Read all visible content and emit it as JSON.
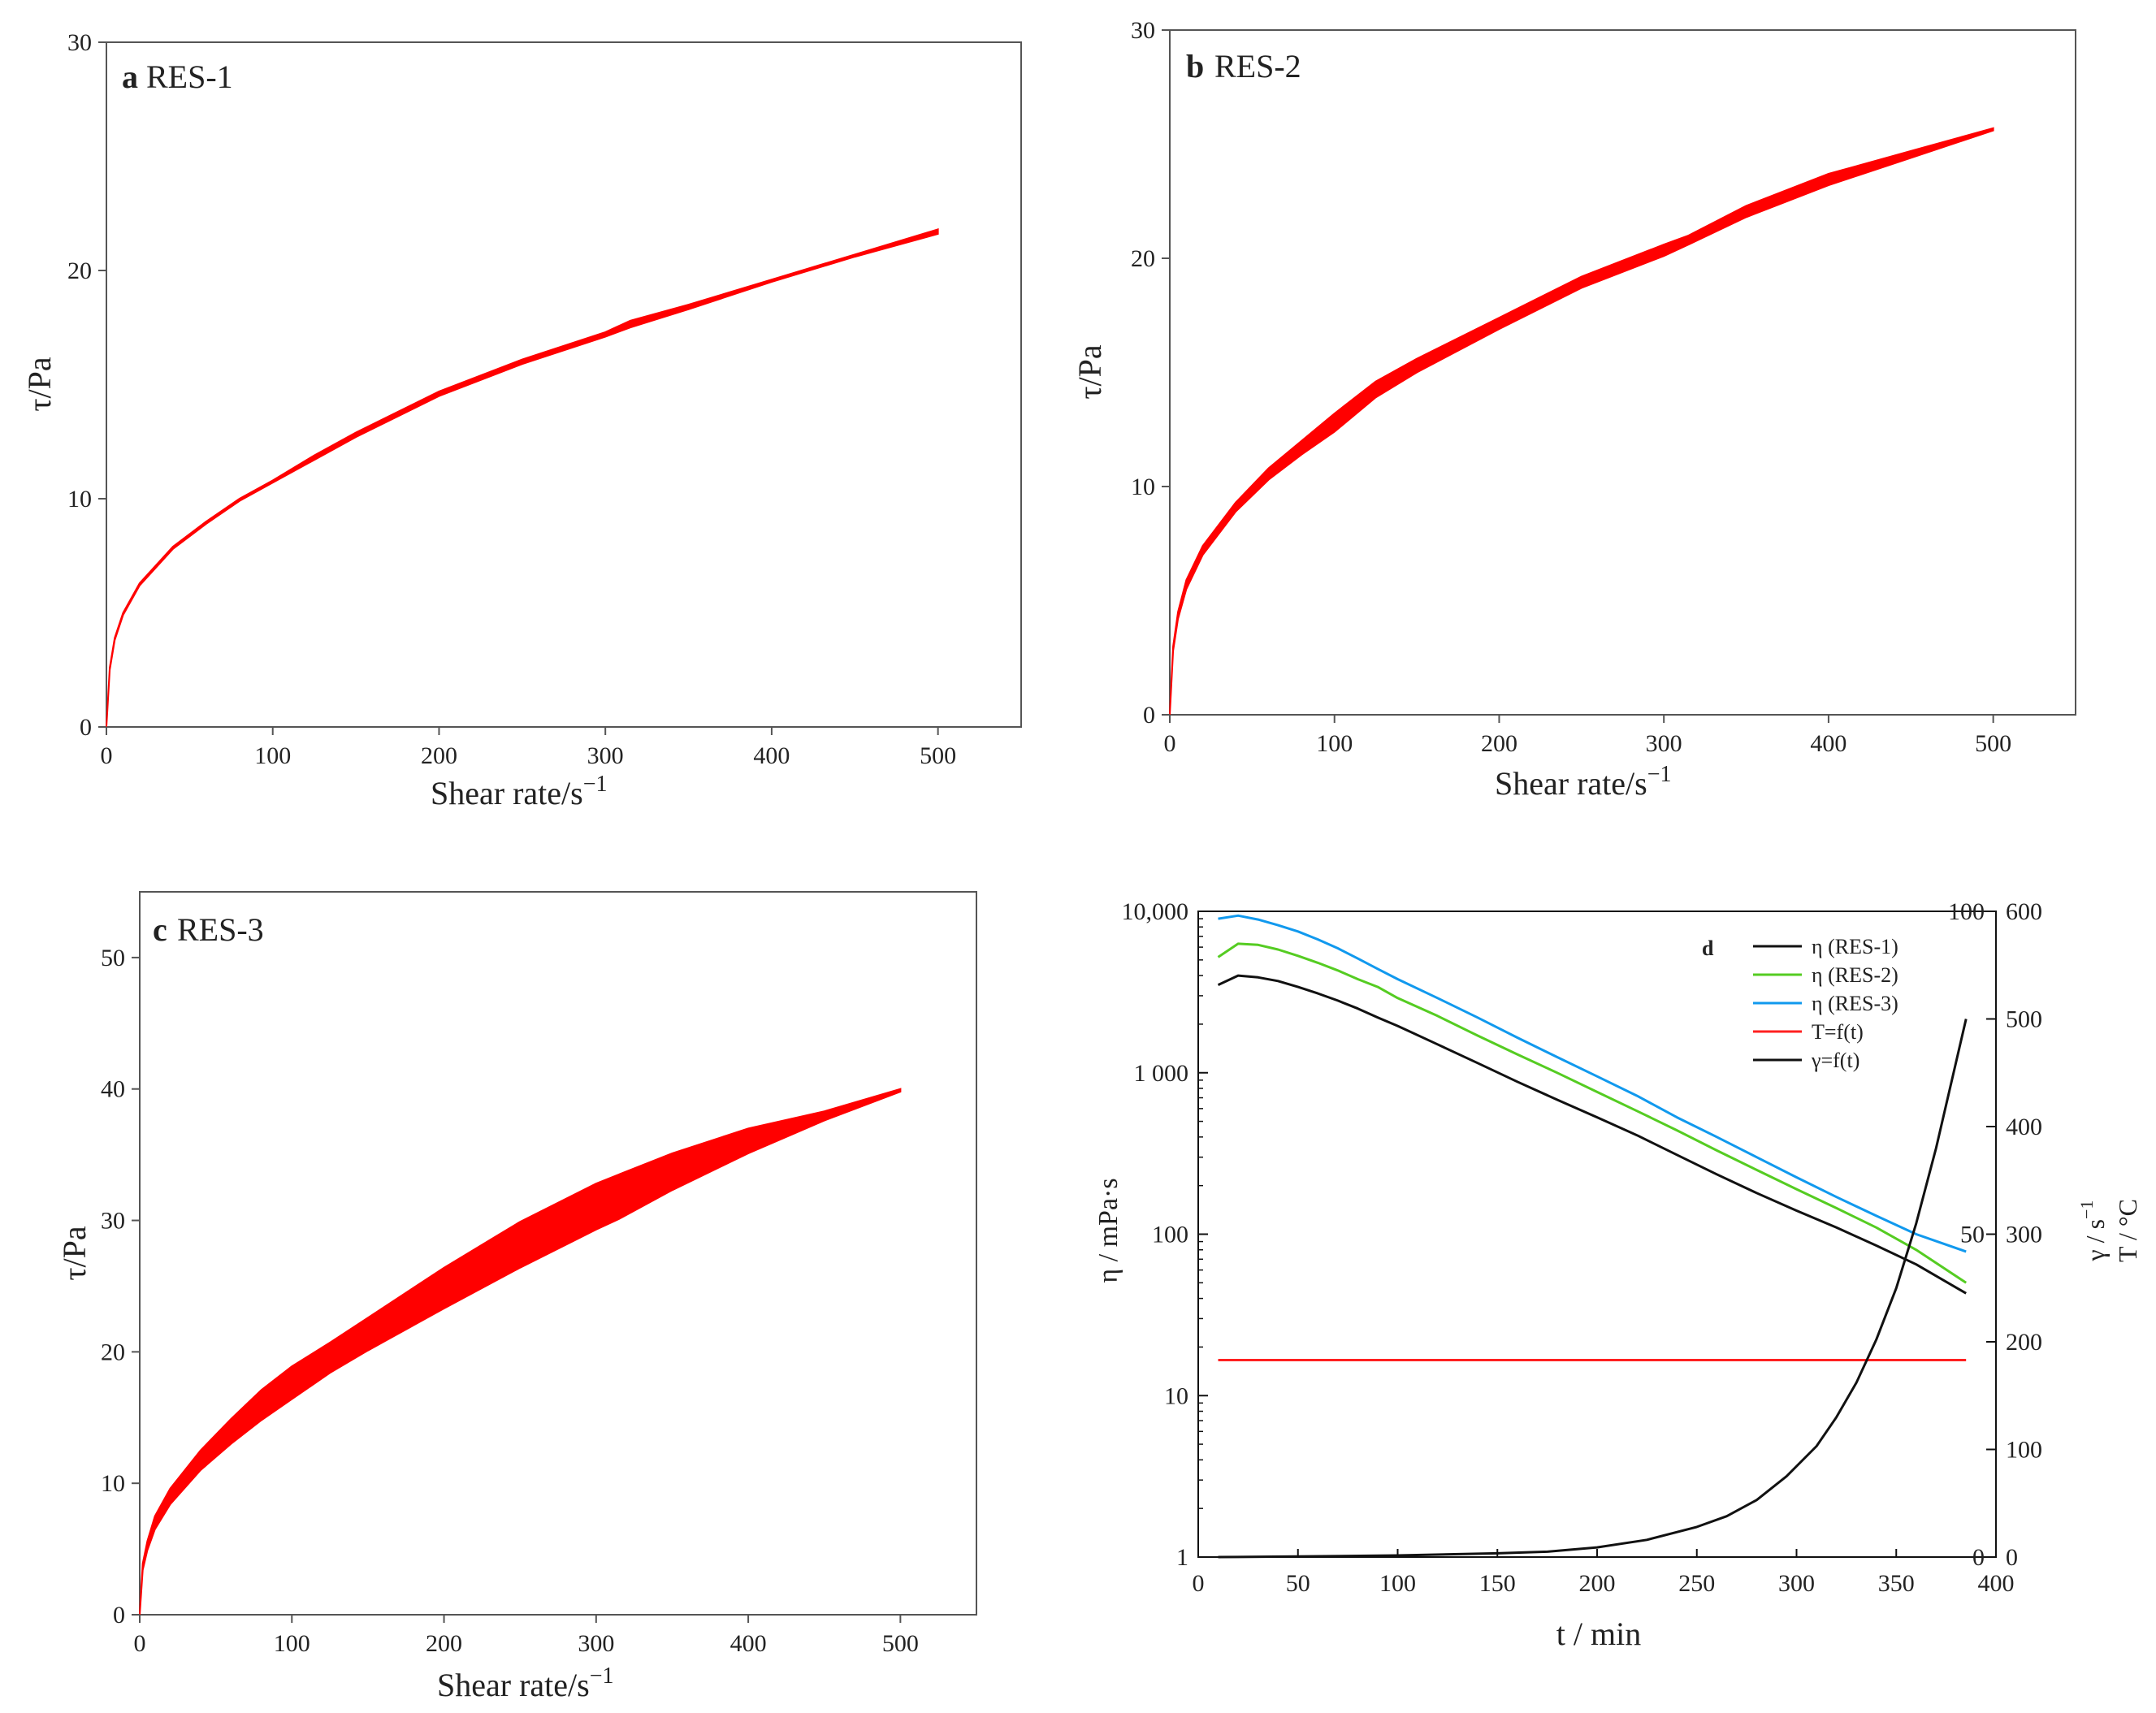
{
  "colors": {
    "band": "#ff0000",
    "eta1": "#111111",
    "eta2": "#55cc22",
    "eta3": "#1199ee",
    "temp": "#ff2020",
    "rate": "#111111",
    "axis": "#555555"
  },
  "chart_data": [
    {
      "type": "area",
      "panel_letter": "a",
      "title": "RES-1",
      "xlabel_main": "Shear rate/s",
      "xlabel_sup": "−1",
      "ylabel": "τ/Pa",
      "xlim": [
        0,
        550
      ],
      "ylim": [
        0,
        30
      ],
      "xticks": [
        0,
        100,
        200,
        300,
        400,
        500
      ],
      "yticks": [
        0,
        10,
        20,
        30
      ],
      "series": [
        {
          "name": "upper",
          "x": [
            0,
            2,
            5,
            10,
            20,
            40,
            60,
            80,
            100,
            125,
            150,
            200,
            250,
            300,
            315,
            350,
            400,
            450,
            500
          ],
          "y": [
            0,
            2.6,
            3.9,
            5.0,
            6.3,
            7.9,
            9.0,
            10.0,
            10.8,
            11.9,
            12.9,
            14.7,
            16.1,
            17.3,
            17.8,
            18.5,
            19.6,
            20.7,
            21.8
          ]
        },
        {
          "name": "lower",
          "x": [
            0,
            2,
            5,
            10,
            20,
            40,
            60,
            80,
            100,
            125,
            150,
            200,
            250,
            300,
            315,
            350,
            400,
            450,
            500
          ],
          "y": [
            0,
            2.5,
            3.8,
            4.9,
            6.2,
            7.8,
            8.9,
            9.9,
            10.7,
            11.7,
            12.7,
            14.5,
            15.9,
            17.1,
            17.5,
            18.3,
            19.5,
            20.6,
            21.6
          ]
        }
      ]
    },
    {
      "type": "area",
      "panel_letter": "b",
      "title": "RES-2",
      "xlabel_main": "Shear rate/s",
      "xlabel_sup": "−1",
      "ylabel": "τ/Pa",
      "xlim": [
        0,
        550
      ],
      "ylim": [
        0,
        30
      ],
      "xticks": [
        0,
        100,
        200,
        300,
        400,
        500
      ],
      "yticks": [
        0,
        10,
        20,
        30
      ],
      "series": [
        {
          "name": "upper",
          "x": [
            0,
            2,
            5,
            10,
            20,
            40,
            60,
            80,
            100,
            125,
            150,
            200,
            250,
            300,
            315,
            350,
            400,
            450,
            500
          ],
          "y": [
            0,
            3.0,
            4.5,
            5.9,
            7.4,
            9.3,
            10.8,
            12.0,
            13.2,
            14.6,
            15.6,
            17.4,
            19.2,
            20.6,
            21.0,
            22.3,
            23.7,
            24.7,
            25.7
          ]
        },
        {
          "name": "lower",
          "x": [
            0,
            2,
            5,
            10,
            20,
            40,
            60,
            80,
            100,
            125,
            150,
            200,
            250,
            300,
            315,
            350,
            400,
            450,
            500
          ],
          "y": [
            0,
            2.8,
            4.2,
            5.5,
            7.0,
            8.9,
            10.3,
            11.4,
            12.4,
            13.9,
            15.0,
            16.9,
            18.7,
            20.1,
            20.6,
            21.8,
            23.2,
            24.4,
            25.6
          ]
        }
      ]
    },
    {
      "type": "area",
      "panel_letter": "c",
      "title": "RES-3",
      "xlabel_main": "Shear rate/s",
      "xlabel_sup": "−1",
      "ylabel": "τ/Pa",
      "xlim": [
        0,
        550
      ],
      "ylim": [
        0,
        55
      ],
      "xticks": [
        0,
        100,
        200,
        300,
        400,
        500
      ],
      "yticks": [
        0,
        10,
        20,
        30,
        40,
        50
      ],
      "series": [
        {
          "name": "upper",
          "x": [
            0,
            2,
            5,
            10,
            20,
            40,
            60,
            80,
            100,
            125,
            150,
            200,
            250,
            300,
            315,
            350,
            400,
            450,
            500
          ],
          "y": [
            0,
            3.9,
            5.6,
            7.5,
            9.6,
            12.5,
            14.9,
            17.1,
            18.9,
            20.7,
            22.6,
            26.4,
            29.9,
            32.8,
            33.5,
            35.1,
            37.0,
            38.3,
            40.0
          ]
        },
        {
          "name": "lower",
          "x": [
            0,
            2,
            5,
            10,
            20,
            40,
            60,
            80,
            100,
            125,
            150,
            200,
            250,
            300,
            315,
            350,
            400,
            450,
            500
          ],
          "y": [
            0,
            3.4,
            4.9,
            6.5,
            8.4,
            11.0,
            13.0,
            14.8,
            16.4,
            18.4,
            20.1,
            23.3,
            26.4,
            29.3,
            30.1,
            32.3,
            35.1,
            37.6,
            39.8
          ]
        }
      ]
    },
    {
      "type": "line",
      "panel_letter": "d",
      "title": "",
      "xlabel": "t / min",
      "ylabel_left": "η / mPa·s",
      "ylabel_right_1": "γ / s",
      "ylabel_right_1_sup": "−1",
      "ylabel_right_2": "T / °C",
      "xlim": [
        0,
        400
      ],
      "xticks": [
        "0",
        "50",
        "100",
        "150",
        "200",
        "250",
        "300",
        "350",
        "400"
      ],
      "y_left_scale": "log",
      "y_left_lim": [
        1,
        10000
      ],
      "y_left_ticks": [
        "1",
        "10",
        "100",
        "1 000",
        "10,000"
      ],
      "y_right_T_lim": [
        0,
        100
      ],
      "y_right_T_ticks": [
        "0",
        "50",
        "100"
      ],
      "y_right_rate_lim": [
        0,
        600
      ],
      "y_right_rate_ticks": [
        "0",
        "100",
        "200",
        "300",
        "400",
        "500",
        "600"
      ],
      "legend_position": "top-right",
      "series": [
        {
          "name": "η (RES-1)",
          "axis": "left",
          "x": [
            10,
            20,
            30,
            40,
            50,
            60,
            70,
            80,
            90,
            100,
            120,
            140,
            160,
            180,
            200,
            220,
            240,
            260,
            280,
            300,
            320,
            340,
            360,
            385
          ],
          "y": [
            3500,
            4000,
            3900,
            3700,
            3400,
            3100,
            2800,
            2500,
            2200,
            1950,
            1500,
            1150,
            880,
            680,
            530,
            410,
            310,
            235,
            180,
            140,
            110,
            85,
            65,
            43
          ]
        },
        {
          "name": "η (RES-2)",
          "axis": "left",
          "x": [
            10,
            20,
            30,
            40,
            50,
            60,
            70,
            80,
            90,
            100,
            120,
            140,
            160,
            180,
            200,
            220,
            240,
            260,
            280,
            300,
            320,
            340,
            360,
            385
          ],
          "y": [
            5200,
            6300,
            6200,
            5800,
            5300,
            4800,
            4300,
            3800,
            3400,
            2900,
            2250,
            1700,
            1300,
            1000,
            760,
            580,
            440,
            330,
            250,
            190,
            145,
            110,
            80,
            50
          ]
        },
        {
          "name": "η (RES-3)",
          "axis": "left",
          "x": [
            10,
            20,
            30,
            40,
            50,
            60,
            70,
            80,
            90,
            100,
            120,
            140,
            160,
            180,
            200,
            220,
            240,
            260,
            280,
            300,
            320,
            340,
            360,
            385
          ],
          "y": [
            9000,
            9400,
            8900,
            8200,
            7500,
            6700,
            5900,
            5100,
            4400,
            3800,
            2900,
            2200,
            1650,
            1250,
            950,
            720,
            530,
            400,
            300,
            225,
            170,
            130,
            100,
            78
          ]
        },
        {
          "name": "T=f(t)",
          "axis": "right_T",
          "x": [
            10,
            385
          ],
          "y": [
            30.5,
            30.5
          ]
        },
        {
          "name": "γ=f(t)",
          "axis": "right_rate",
          "x": [
            10,
            50,
            100,
            150,
            175,
            200,
            225,
            250,
            265,
            280,
            295,
            310,
            320,
            330,
            340,
            350,
            360,
            370,
            385
          ],
          "y": [
            0,
            0.5,
            1.5,
            3.5,
            5,
            9,
            16,
            28,
            38,
            53,
            75,
            103,
            130,
            162,
            202,
            250,
            310,
            380,
            500
          ]
        }
      ]
    }
  ]
}
